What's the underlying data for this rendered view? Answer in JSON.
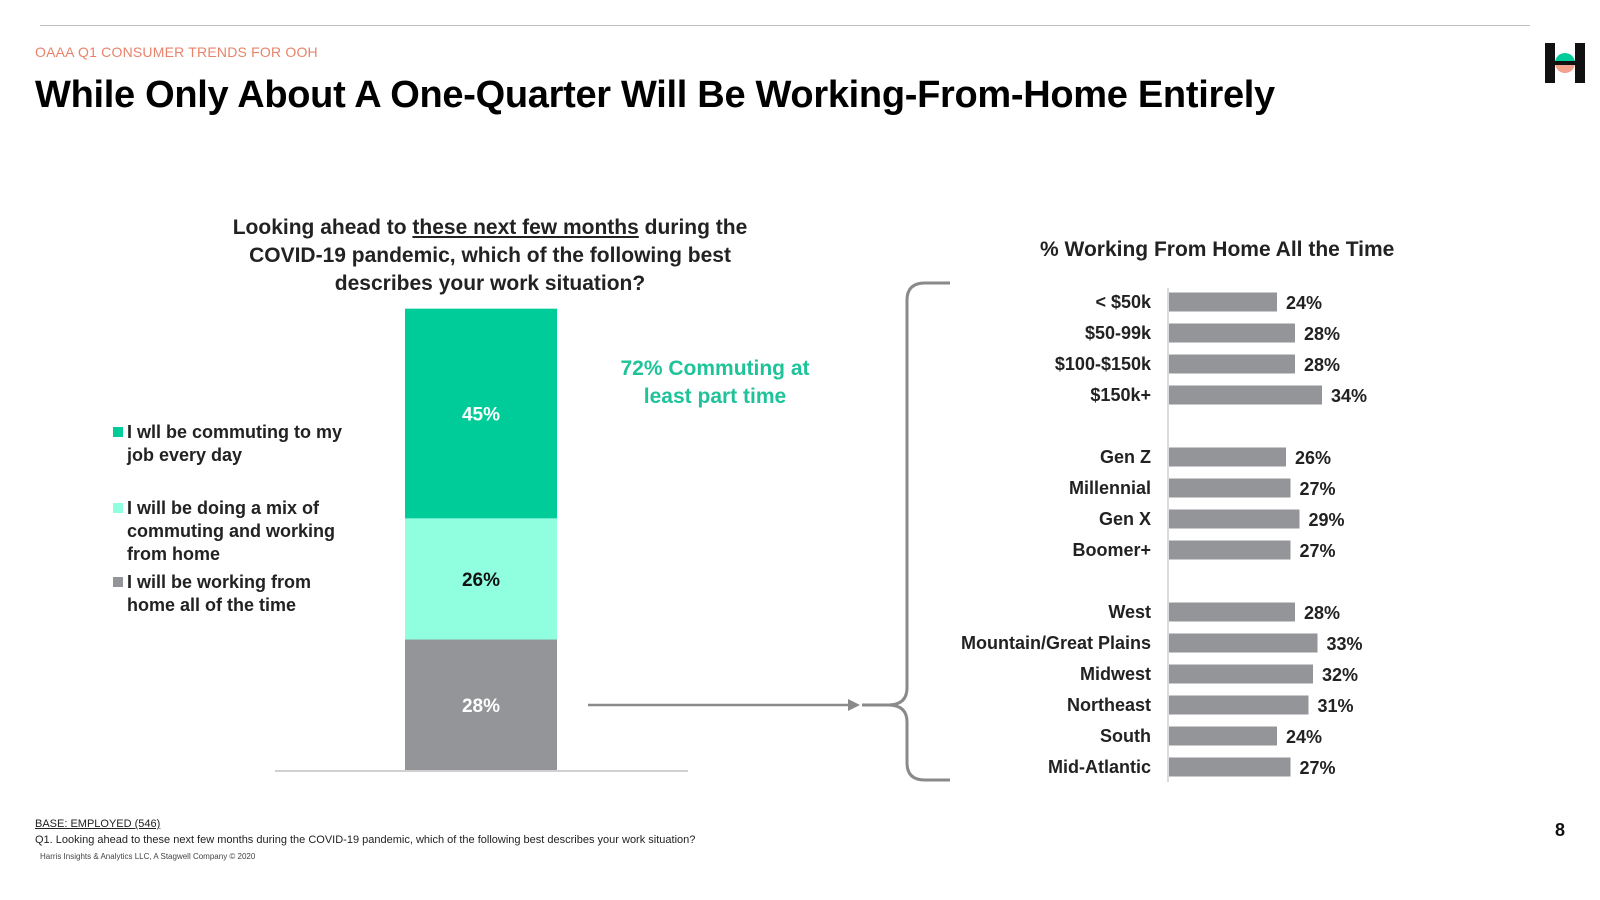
{
  "header": {
    "eyebrow": "OAAA Q1 CONSUMER TRENDS FOR OOH",
    "title": "While Only About A One-Quarter Will Be Working-From-Home Entirely",
    "page_number": "8"
  },
  "question": {
    "before": "Looking ahead to ",
    "underlined": "these next few months",
    "after": " during the COVID-19 pandemic, which of the following best describes your work situation?"
  },
  "legend": [
    {
      "label": "I wll be commuting to my job every day",
      "color": "#00cc99"
    },
    {
      "label": "I will be doing a mix of commuting and working from home",
      "color": "#8fffe0"
    },
    {
      "label": "I will be working from home all of the time",
      "color": "#939598"
    }
  ],
  "callout": "72% Commuting at least part time",
  "right_chart": {
    "title": "% Working From Home All the Time"
  },
  "colors": {
    "green": "#00cc99",
    "mint": "#8fffe0",
    "gray": "#939598",
    "callout": "#1fc39a",
    "eyebrow": "#e8836a"
  },
  "chart_data": [
    {
      "type": "bar",
      "stacked": true,
      "categories": [
        ""
      ],
      "series": [
        {
          "name": "I will be working from home all of the time",
          "values": [
            28
          ],
          "label": "28%"
        },
        {
          "name": "I will be doing a mix of commuting and working from home",
          "values": [
            26
          ],
          "label": "26%"
        },
        {
          "name": "I wll be commuting to my job every day",
          "values": [
            45
          ],
          "label": "45%"
        }
      ],
      "title": "",
      "xlabel": "",
      "ylabel": "",
      "ylim": [
        0,
        100
      ],
      "grid": false,
      "legend_position": "left"
    },
    {
      "type": "bar",
      "orientation": "horizontal",
      "title": "% Working From Home All the Time",
      "xlim": [
        0,
        100
      ],
      "grid": false,
      "groups": [
        {
          "categories": [
            "< $50k",
            "$50-99k",
            "$100-$150k",
            "$150k+"
          ],
          "values": [
            24,
            28,
            28,
            34
          ]
        },
        {
          "categories": [
            "Gen Z",
            "Millennial",
            "Gen X",
            "Boomer+"
          ],
          "values": [
            26,
            27,
            29,
            27
          ]
        },
        {
          "categories": [
            "West",
            "Mountain/Great Plains",
            "Midwest",
            "Northeast",
            "South",
            "Mid-Atlantic"
          ],
          "values": [
            28,
            33,
            32,
            31,
            24,
            27
          ]
        }
      ]
    }
  ],
  "footnotes": {
    "base": "BASE: EMPLOYED (546)",
    "question": "Q1. Looking ahead to these next few months during the COVID-19 pandemic, which of the following best describes your work situation?",
    "copyright": "Harris Insights & Analytics LLC, A Stagwell Company © 2020"
  }
}
